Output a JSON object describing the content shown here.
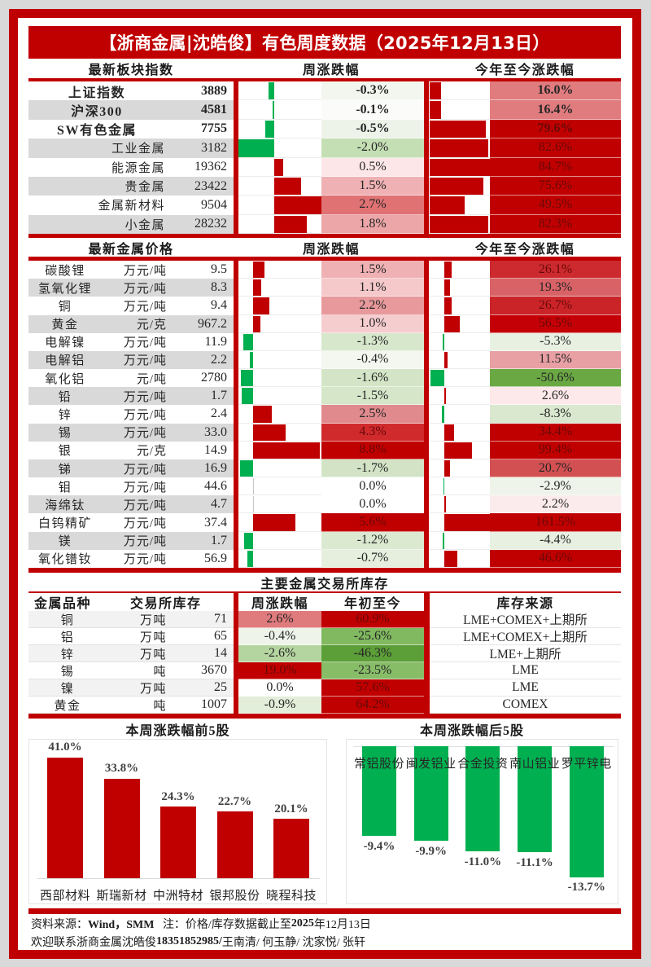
{
  "title": "【浙商金属|沈皓俊】有色周度数据（2025年12月13日）",
  "colors": {
    "brand_red": "#c00000",
    "up_bar": "#c00000",
    "down_bar": "#00b050",
    "row_gray": "#d9d9d9",
    "row_light_gray": "#f2f2f2",
    "dark_cell_text": "#6a0808",
    "normal_text": "#262626"
  },
  "sector_index": {
    "headers": {
      "name": "最新板块指数",
      "weekly": "周涨跌幅",
      "ytd": "今年至今涨跌幅"
    },
    "rows": [
      {
        "name": "上证指数",
        "value": "3889",
        "weekly": "-0.3%",
        "weekly_color": "#f2f6ee",
        "ytd": "16.0%",
        "ytd_color": "#e07b7e",
        "bold": true
      },
      {
        "name": "沪深300",
        "value": "4581",
        "weekly": "-0.1%",
        "weekly_color": "#fbfcfa",
        "ytd": "16.4%",
        "ytd_color": "#e07b7e",
        "bold": true
      },
      {
        "name": "SW有色金属",
        "value": "7755",
        "weekly": "-0.5%",
        "weekly_color": "#eef3e9",
        "ytd": "79.6%",
        "ytd_color": "#c00000",
        "bold": true
      },
      {
        "name": "工业金属",
        "value": "3182",
        "weekly": "-2.0%",
        "weekly_color": "#c5dfb5",
        "ytd": "82.6%",
        "ytd_color": "#c00000",
        "bold": false
      },
      {
        "name": "能源金属",
        "value": "19362",
        "weekly": "0.5%",
        "weekly_color": "#fde6e8",
        "ytd": "84.7%",
        "ytd_color": "#c00000",
        "bold": false
      },
      {
        "name": "贵金属",
        "value": "23422",
        "weekly": "1.5%",
        "weekly_color": "#efb1b3",
        "ytd": "75.6%",
        "ytd_color": "#c00000",
        "bold": false
      },
      {
        "name": "金属新材料",
        "value": "9504",
        "weekly": "2.7%",
        "weekly_color": "#e07274",
        "ytd": "49.5%",
        "ytd_color": "#c00000",
        "bold": false
      },
      {
        "name": "小金属",
        "value": "28232",
        "weekly": "1.8%",
        "weekly_color": "#eca6a7",
        "ytd": "82.3%",
        "ytd_color": "#c00000",
        "bold": false
      }
    ]
  },
  "metal_prices": {
    "headers": {
      "name": "最新金属价格",
      "weekly": "周涨跌幅",
      "ytd": "今年至今涨跌幅"
    },
    "rows": [
      {
        "name": "碳酸锂",
        "unit": "万元/吨",
        "price": "9.5",
        "weekly": "1.5%",
        "weekly_color": "#efb1b3",
        "ytd": "26.1%",
        "ytd_color": "#cc2a2e"
      },
      {
        "name": "氢氧化锂",
        "unit": "万元/吨",
        "price": "8.3",
        "weekly": "1.1%",
        "weekly_color": "#f5c8ca",
        "ytd": "19.3%",
        "ytd_color": "#d86266"
      },
      {
        "name": "铜",
        "unit": "万元/吨",
        "price": "9.4",
        "weekly": "2.2%",
        "weekly_color": "#e8999c",
        "ytd": "26.7%",
        "ytd_color": "#cb2428"
      },
      {
        "name": "黄金",
        "unit": "元/克",
        "price": "967.2",
        "weekly": "1.0%",
        "weekly_color": "#f6cdcf",
        "ytd": "56.5%",
        "ytd_color": "#c40006"
      },
      {
        "name": "电解镍",
        "unit": "万元/吨",
        "price": "11.9",
        "weekly": "-1.3%",
        "weekly_color": "#d7e7cc",
        "ytd": "-5.3%",
        "ytd_color": "#e8f0e2"
      },
      {
        "name": "电解铝",
        "unit": "万元/吨",
        "price": "2.2",
        "weekly": "-0.4%",
        "weekly_color": "#f3f7ef",
        "ytd": "11.5%",
        "ytd_color": "#e8a0a4"
      },
      {
        "name": "氧化铝",
        "unit": "元/吨",
        "price": "2780",
        "weekly": "-1.6%",
        "weekly_color": "#d3e5c6",
        "ytd": "-50.6%",
        "ytd_color": "#6aa843"
      },
      {
        "name": "铅",
        "unit": "万元/吨",
        "price": "1.7",
        "weekly": "-1.5%",
        "weekly_color": "#d5e6c9",
        "ytd": "2.6%",
        "ytd_color": "#fde8ea"
      },
      {
        "name": "锌",
        "unit": "万元/吨",
        "price": "2.4",
        "weekly": "2.5%",
        "weekly_color": "#e08a8d",
        "ytd": "-8.3%",
        "ytd_color": "#d9e8cf"
      },
      {
        "name": "锡",
        "unit": "万元/吨",
        "price": "33.0",
        "weekly": "4.3%",
        "weekly_color": "#d02a2d",
        "ytd": "34.4%",
        "ytd_color": "#c00000"
      },
      {
        "name": "银",
        "unit": "元/克",
        "price": "14.9",
        "weekly": "8.8%",
        "weekly_color": "#c00000",
        "ytd": "99.4%",
        "ytd_color": "#c00000"
      },
      {
        "name": "锑",
        "unit": "万元/吨",
        "price": "16.9",
        "weekly": "-1.7%",
        "weekly_color": "#d2e4c5",
        "ytd": "20.7%",
        "ytd_color": "#d35052"
      },
      {
        "name": "钼",
        "unit": "万元/吨",
        "price": "44.6",
        "weekly": "0.0%",
        "weekly_color": "#ffffff",
        "ytd": "-2.9%",
        "ytd_color": "#eef4e9"
      },
      {
        "name": "海绵钛",
        "unit": "万元/吨",
        "price": "4.7",
        "weekly": "0.0%",
        "weekly_color": "#ffffff",
        "ytd": "2.2%",
        "ytd_color": "#fcebec"
      },
      {
        "name": "白钨精矿",
        "unit": "万元/吨",
        "price": "37.4",
        "weekly": "5.6%",
        "weekly_color": "#c00000",
        "ytd": "161.5%",
        "ytd_color": "#c00000"
      },
      {
        "name": "镁",
        "unit": "万元/吨",
        "price": "1.7",
        "weekly": "-1.2%",
        "weekly_color": "#dbe9d1",
        "ytd": "-4.4%",
        "ytd_color": "#e8f0e1"
      },
      {
        "name": "氧化镨钕",
        "unit": "万元/吨",
        "price": "56.9",
        "weekly": "-0.7%",
        "weekly_color": "#e6efde",
        "ytd": "46.6%",
        "ytd_color": "#c00000"
      }
    ]
  },
  "exchange_inventory": {
    "title": "主要金属交易所库存",
    "headers": {
      "metal": "金属品种",
      "inventory": "交易所库存",
      "weekly": "周涨跌幅",
      "ytd": "年初至今",
      "source": "库存来源"
    },
    "rows": [
      {
        "metal": "铜",
        "unit": "万吨",
        "value": "71",
        "weekly": "2.6%",
        "weekly_color": "#e07b7d",
        "ytd": "60.9%",
        "ytd_color": "#c00000",
        "source": "LME+COMEX+上期所"
      },
      {
        "metal": "铝",
        "unit": "万吨",
        "value": "65",
        "weekly": "-0.4%",
        "weekly_color": "#eef4ea",
        "ytd": "-25.6%",
        "ytd_color": "#80b960",
        "source": "LME+COMEX+上期所"
      },
      {
        "metal": "锌",
        "unit": "万吨",
        "value": "14",
        "weekly": "-2.6%",
        "weekly_color": "#b5d5a0",
        "ytd": "-46.3%",
        "ytd_color": "#5c9e38",
        "source": "LME+上期所"
      },
      {
        "metal": "锡",
        "unit": "吨",
        "value": "3670",
        "weekly": "19.0%",
        "weekly_color": "#c00000",
        "ytd": "-23.5%",
        "ytd_color": "#88bd68",
        "source": "LME"
      },
      {
        "metal": "镍",
        "unit": "万吨",
        "value": "25",
        "weekly": "0.0%",
        "weekly_color": "#ffffff",
        "ytd": "57.6%",
        "ytd_color": "#c00000",
        "source": "LME"
      },
      {
        "metal": "黄金",
        "unit": "吨",
        "value": "1007",
        "weekly": "-0.9%",
        "weekly_color": "#e2eed9",
        "ytd": "64.2%",
        "ytd_color": "#c00000",
        "source": "COMEX"
      }
    ]
  },
  "chart_data": [
    {
      "type": "bar",
      "title": "本周涨跌幅前5股",
      "categories": [
        "西部材料",
        "斯瑞新材",
        "中洲特材",
        "银邦股份",
        "晓程科技"
      ],
      "values": [
        41.0,
        33.8,
        24.3,
        22.7,
        20.1
      ],
      "value_labels": [
        "41.0%",
        "33.8%",
        "24.3%",
        "22.7%",
        "20.1%"
      ],
      "xlabel": "",
      "ylabel": "",
      "grid": false,
      "legend": null,
      "bar_color": "#c00000"
    },
    {
      "type": "bar",
      "title": "本周涨跌幅后5股",
      "categories": [
        "常铝股份",
        "闽发铝业",
        "合金投资",
        "南山铝业",
        "罗平锌电"
      ],
      "values": [
        -9.4,
        -9.9,
        -11.0,
        -11.1,
        -13.7
      ],
      "value_labels": [
        "-9.4%",
        "-9.9%",
        "-11.0%",
        "-11.1%",
        "-13.7%"
      ],
      "xlabel": "",
      "ylabel": "",
      "grid": false,
      "legend": null,
      "bar_color": "#00b050"
    }
  ],
  "footer": {
    "line1": [
      {
        "text": "资料来源：",
        "bold": false
      },
      {
        "text": "Wind，SMM",
        "bold": true
      },
      {
        "text": "   注：价格/库存数据截止至",
        "bold": false
      },
      {
        "text": "2025",
        "bold": true
      },
      {
        "text": "年12月13日",
        "bold": false
      }
    ],
    "line2": [
      {
        "text": "欢迎联系浙商金属沈皓俊",
        "bold": false
      },
      {
        "text": "18351852985/",
        "bold": true
      },
      {
        "text": " 王南清/ 何玉静/ 沈家悦/ 张轩",
        "bold": false
      }
    ]
  }
}
